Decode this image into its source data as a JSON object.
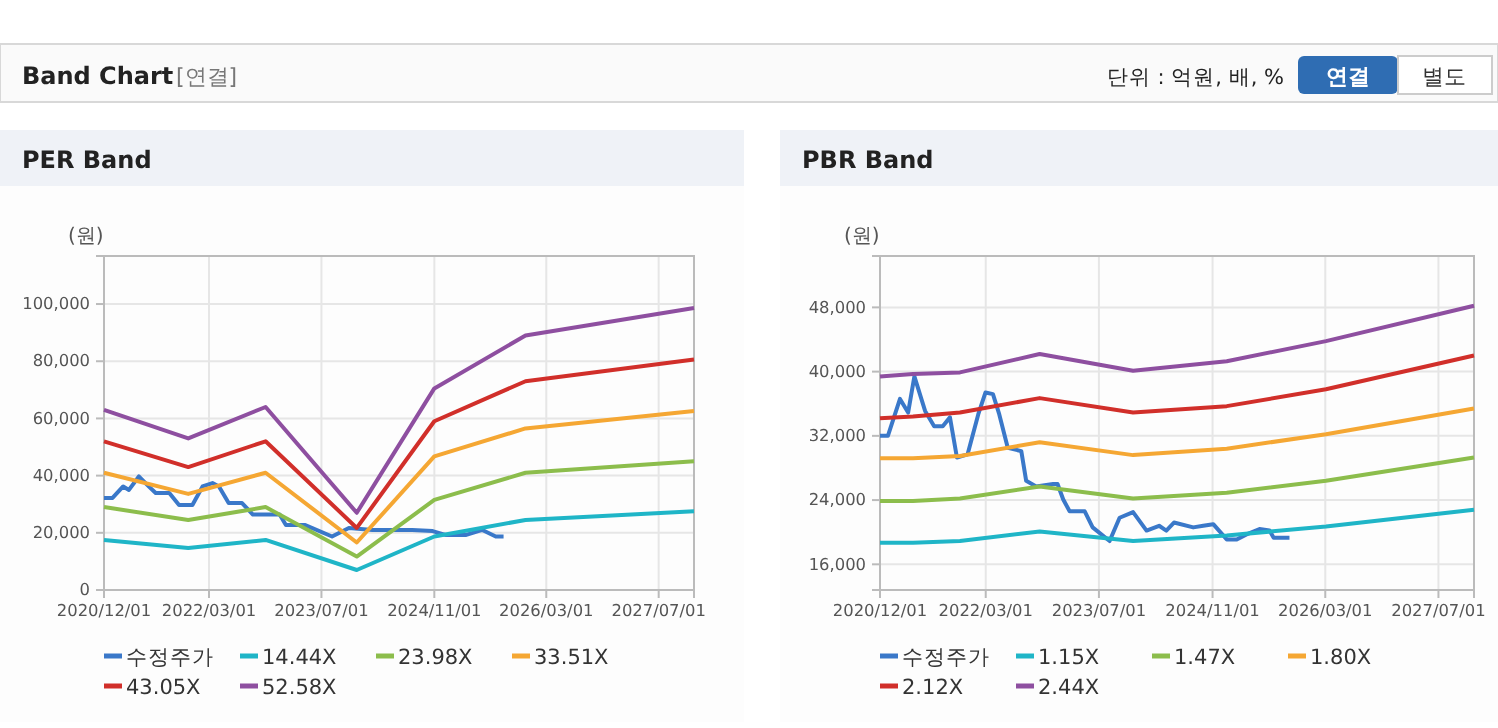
{
  "chart_data": [
    {
      "type": "other",
      "title": "Band Chart",
      "subtitle": "[연결]",
      "annotations": [
        "단위 : 억원, 배, %",
        "연결",
        "별도"
      ]
    },
    {
      "type": "line",
      "title": "PER Band",
      "ylabel": "(원)",
      "grid": true,
      "legend": "bottom",
      "xlim": [
        "2020-12-01",
        "2027-12-01"
      ],
      "ylim": [
        0,
        116800
      ],
      "xticks": [
        {
          "value": "2020-12-01",
          "label": "2020/12/01"
        },
        {
          "value": "2022-03-01",
          "label": "2022/03/01"
        },
        {
          "value": "2023-07-01",
          "label": "2023/07/01"
        },
        {
          "value": "2024-11-01",
          "label": "2024/11/01"
        },
        {
          "value": "2026-03-01",
          "label": "2026/03/01"
        },
        {
          "value": "2027-07-01",
          "label": "2027/07/01"
        }
      ],
      "yticks": [
        0,
        {
          "value": 20000,
          "label": "20,000"
        },
        {
          "value": 40000,
          "label": "40,000"
        },
        {
          "value": 60000,
          "label": "60,000"
        },
        {
          "value": 80000,
          "label": "80,000"
        },
        {
          "value": 100000,
          "label": "100,000"
        }
      ],
      "x": [
        "2020-12-01",
        "2021-12-01",
        "2022-11-01",
        "2023-12-01",
        "2024-11-01",
        "2025-12-01",
        "2027-12-01"
      ],
      "series": [
        {
          "name": "수정주가",
          "color": "#3a78c9",
          "x": [
            "2020-12-01",
            "2021-01-07",
            "2021-02-22",
            "2021-03-19",
            "2021-05-01",
            "2021-06-16",
            "2021-07-13",
            "2021-09-10",
            "2021-10-22",
            "2021-12-19",
            "2022-02-01",
            "2022-03-16",
            "2022-04-13",
            "2022-05-25",
            "2022-07-22",
            "2022-09-07",
            "2023-01-01",
            "2023-01-28",
            "2023-04-22",
            "2023-08-16",
            "2023-10-28",
            "2024-02-07",
            "2024-07-28",
            "2024-10-25",
            "2024-12-22",
            "2025-03-16",
            "2025-05-28",
            "2025-07-25",
            "2025-08-28"
          ],
          "values": [
            32200,
            32200,
            36200,
            35000,
            39700,
            36000,
            33900,
            33900,
            29700,
            29700,
            36200,
            37400,
            36200,
            30400,
            30400,
            26400,
            26400,
            22700,
            22700,
            18700,
            21700,
            21000,
            21000,
            20600,
            19200,
            19200,
            21000,
            18700,
            18700
          ]
        },
        {
          "name": "14.44X",
          "color": "#1fb5c7",
          "values": [
            17500,
            14700,
            17500,
            7000,
            18700,
            24500,
            27500
          ]
        },
        {
          "name": "23.98X",
          "color": "#8cbd4c",
          "values": [
            29000,
            24500,
            29000,
            11700,
            31500,
            41000,
            45000
          ]
        },
        {
          "name": "33.51X",
          "color": "#f5a733",
          "values": [
            41000,
            33600,
            41000,
            16600,
            46700,
            56500,
            62600
          ]
        },
        {
          "name": "43.05X",
          "color": "#d12f2a",
          "values": [
            52000,
            43000,
            52000,
            21700,
            59000,
            73000,
            80600
          ]
        },
        {
          "name": "52.58X",
          "color": "#8e4fa0",
          "values": [
            63000,
            53000,
            64000,
            27000,
            70500,
            89000,
            98600
          ]
        }
      ]
    },
    {
      "type": "line",
      "title": "PBR Band",
      "ylabel": "(원)",
      "grid": true,
      "legend": "bottom",
      "xlim": [
        "2020-12-01",
        "2027-12-01"
      ],
      "ylim": [
        12800,
        54400
      ],
      "xticks": [
        {
          "value": "2020-12-01",
          "label": "2020/12/01"
        },
        {
          "value": "2022-03-01",
          "label": "2022/03/01"
        },
        {
          "value": "2023-07-01",
          "label": "2023/07/01"
        },
        {
          "value": "2024-11-01",
          "label": "2024/11/01"
        },
        {
          "value": "2026-03-01",
          "label": "2026/03/01"
        },
        {
          "value": "2027-07-01",
          "label": "2027/07/01"
        }
      ],
      "yticks": [
        {
          "value": 16000,
          "label": "16,000"
        },
        {
          "value": 24000,
          "label": "24,000"
        },
        {
          "value": 32000,
          "label": "32,000"
        },
        {
          "value": 40000,
          "label": "40,000"
        },
        {
          "value": 48000,
          "label": "48,000"
        }
      ],
      "x": [
        "2020-12-01",
        "2021-04-22",
        "2021-11-10",
        "2022-10-19",
        "2023-11-25",
        "2025-01-01",
        "2026-03-04",
        "2027-12-01"
      ],
      "series": [
        {
          "name": "수정주가",
          "color": "#3a78c9",
          "x": [
            "2020-12-01",
            "2021-01-04",
            "2021-02-25",
            "2021-04-01",
            "2021-04-28",
            "2021-06-13",
            "2021-07-22",
            "2021-08-28",
            "2021-09-28",
            "2021-10-28",
            "2021-12-13",
            "2022-01-28",
            "2022-02-28",
            "2022-04-01",
            "2022-04-28",
            "2022-06-04",
            "2022-08-01",
            "2022-08-22",
            "2022-10-04",
            "2022-12-16",
            "2023-01-04",
            "2023-01-28",
            "2023-02-25",
            "2023-05-01",
            "2023-06-04",
            "2023-08-16",
            "2023-09-28",
            "2023-11-25",
            "2024-01-22",
            "2024-03-16",
            "2024-04-16",
            "2024-05-19",
            "2024-08-10",
            "2024-09-22",
            "2024-11-04",
            "2025-01-01",
            "2025-02-13",
            "2025-03-25",
            "2025-05-22",
            "2025-07-04",
            "2025-07-22",
            "2025-09-28"
          ],
          "values": [
            32000,
            32000,
            36600,
            34900,
            39400,
            35100,
            33200,
            33200,
            34300,
            29300,
            29700,
            34700,
            37400,
            37200,
            34700,
            30500,
            30100,
            26400,
            25700,
            26000,
            26000,
            24100,
            22600,
            22600,
            20600,
            18900,
            21800,
            22500,
            20200,
            20800,
            20200,
            21200,
            20600,
            20800,
            21000,
            19100,
            19100,
            19700,
            20400,
            20200,
            19300,
            19300
          ]
        },
        {
          "name": "1.15X",
          "color": "#1fb5c7",
          "values": [
            18700,
            18700,
            18900,
            20100,
            18900,
            19600,
            20700,
            22800
          ]
        },
        {
          "name": "1.47X",
          "color": "#8cbd4c",
          "values": [
            23900,
            23900,
            24200,
            25700,
            24200,
            24900,
            26400,
            29300
          ]
        },
        {
          "name": "1.80X",
          "color": "#f5a733",
          "values": [
            29200,
            29200,
            29500,
            31200,
            29600,
            30400,
            32200,
            35400
          ]
        },
        {
          "name": "2.12X",
          "color": "#d12f2a",
          "values": [
            34200,
            34400,
            34900,
            36700,
            34900,
            35700,
            37800,
            42000
          ]
        },
        {
          "name": "2.44X",
          "color": "#8e4fa0",
          "values": [
            39400,
            39700,
            39900,
            42200,
            40100,
            41300,
            43800,
            48200
          ]
        }
      ]
    }
  ]
}
